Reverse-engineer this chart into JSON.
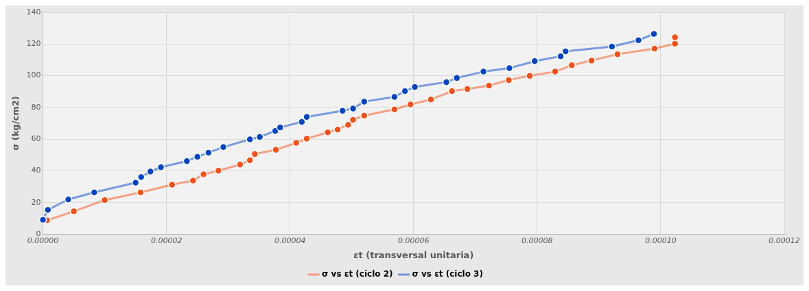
{
  "chart_data": {
    "type": "line",
    "xlabel": "εt (transversal unitaria)",
    "ylabel": "σ (kg/cm2)",
    "xlim": [
      0,
      0.00012
    ],
    "xticks": [
      {
        "value": 0,
        "label": "0.00000"
      },
      {
        "value": 2e-05,
        "label": "0.00002"
      },
      {
        "value": 4e-05,
        "label": "0.00004"
      },
      {
        "value": 6e-05,
        "label": "0.00006"
      },
      {
        "value": 8e-05,
        "label": "0.00008"
      },
      {
        "value": 0.0001,
        "label": "0.00010"
      },
      {
        "value": 0.00012,
        "label": "0.00012"
      }
    ],
    "ylim": [
      0,
      140
    ],
    "yticks": [
      0,
      20,
      40,
      60,
      80,
      100,
      120,
      140
    ],
    "grid": true,
    "legend": "bottom",
    "marker": "circle",
    "line_style": "solid",
    "series": [
      {
        "name": "σ vs εt (ciclo 2)",
        "color": "#fc4e14",
        "x": [
          6.7e-07,
          5e-06,
          1e-05,
          1.58e-05,
          2.09e-05,
          2.43e-05,
          2.6e-05,
          2.84e-05,
          3.19e-05,
          3.35e-05,
          3.43e-05,
          3.77e-05,
          4.1e-05,
          4.27e-05,
          4.61e-05,
          4.77e-05,
          4.94e-05,
          5.02e-05,
          5.2e-05,
          5.69e-05,
          5.95e-05,
          6.28e-05,
          6.62e-05,
          6.87e-05,
          7.22e-05,
          7.54e-05,
          7.88e-05,
          8.29e-05,
          8.56e-05,
          8.88e-05,
          9.3e-05,
          9.9e-05,
          0.0001023,
          0.0001023
        ],
        "values": [
          8.8,
          14.5,
          21.6,
          26.4,
          31.3,
          33.9,
          37.9,
          40.1,
          44,
          46.7,
          50.6,
          53.3,
          57.7,
          60.3,
          64.3,
          66.1,
          69.1,
          72.2,
          74.9,
          78.8,
          81.9,
          85,
          90.3,
          91.6,
          93.8,
          97.3,
          100,
          102.6,
          106.6,
          109.6,
          113.6,
          117.1,
          120.2,
          124.2
        ]
      },
      {
        "name": "σ vs εt (ciclo 3)",
        "color": "#0044cc",
        "x": [
          0,
          8e-07,
          4.1e-06,
          8.3e-06,
          1.5e-05,
          1.59e-05,
          1.74e-05,
          1.91e-05,
          2.33e-05,
          2.5e-05,
          2.68e-05,
          2.92e-05,
          3.35e-05,
          3.51e-05,
          3.76e-05,
          3.84e-05,
          4.19e-05,
          4.27e-05,
          4.85e-05,
          5.02e-05,
          5.2e-05,
          5.69e-05,
          5.86e-05,
          6.02e-05,
          6.53e-05,
          6.7e-05,
          7.13e-05,
          7.55e-05,
          7.96e-05,
          8.38e-05,
          8.46e-05,
          9.21e-05,
          9.64e-05,
          9.89e-05
        ],
        "values": [
          9.2,
          15.4,
          22,
          26.4,
          32.6,
          36.1,
          39.6,
          42.3,
          46.2,
          48.9,
          51.5,
          55,
          59.9,
          61.4,
          65.2,
          67.4,
          70.9,
          74,
          77.9,
          79.3,
          83.7,
          86.7,
          90.3,
          92.9,
          96,
          98.6,
          102.6,
          104.8,
          109.2,
          112.3,
          115.4,
          118.4,
          122.4,
          126.4
        ]
      }
    ]
  }
}
